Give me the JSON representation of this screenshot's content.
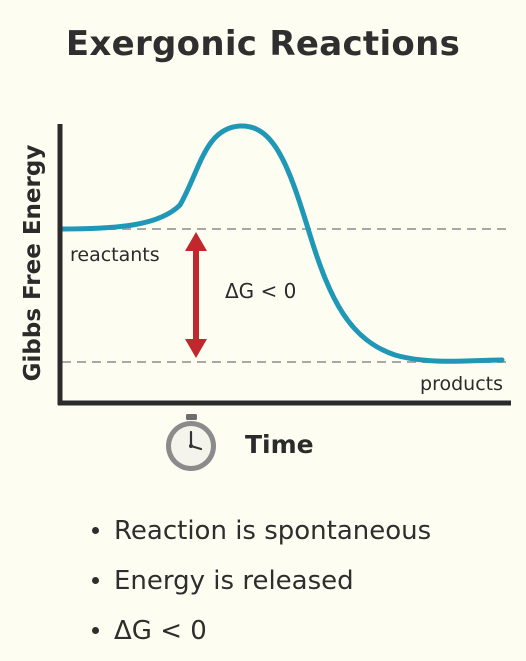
{
  "title": "Exergonic Reactions",
  "diagram": {
    "y_axis_label": "Gibbs Free Energy",
    "x_axis_label": "Time",
    "reactants_label": "reactants",
    "products_label": "products",
    "delta_g_label": "ΔG < 0",
    "icons": [
      "stopwatch-icon",
      "double-arrow-icon"
    ],
    "colors": {
      "curve": "#1f97b7",
      "arrow": "#c0282d",
      "axes": "#2b2b2b",
      "dashed_level": "#a8a8a8",
      "background": "#fefdf1"
    }
  },
  "bullets": [
    "Reaction is spontaneous",
    "Energy is released",
    "ΔG < 0"
  ]
}
